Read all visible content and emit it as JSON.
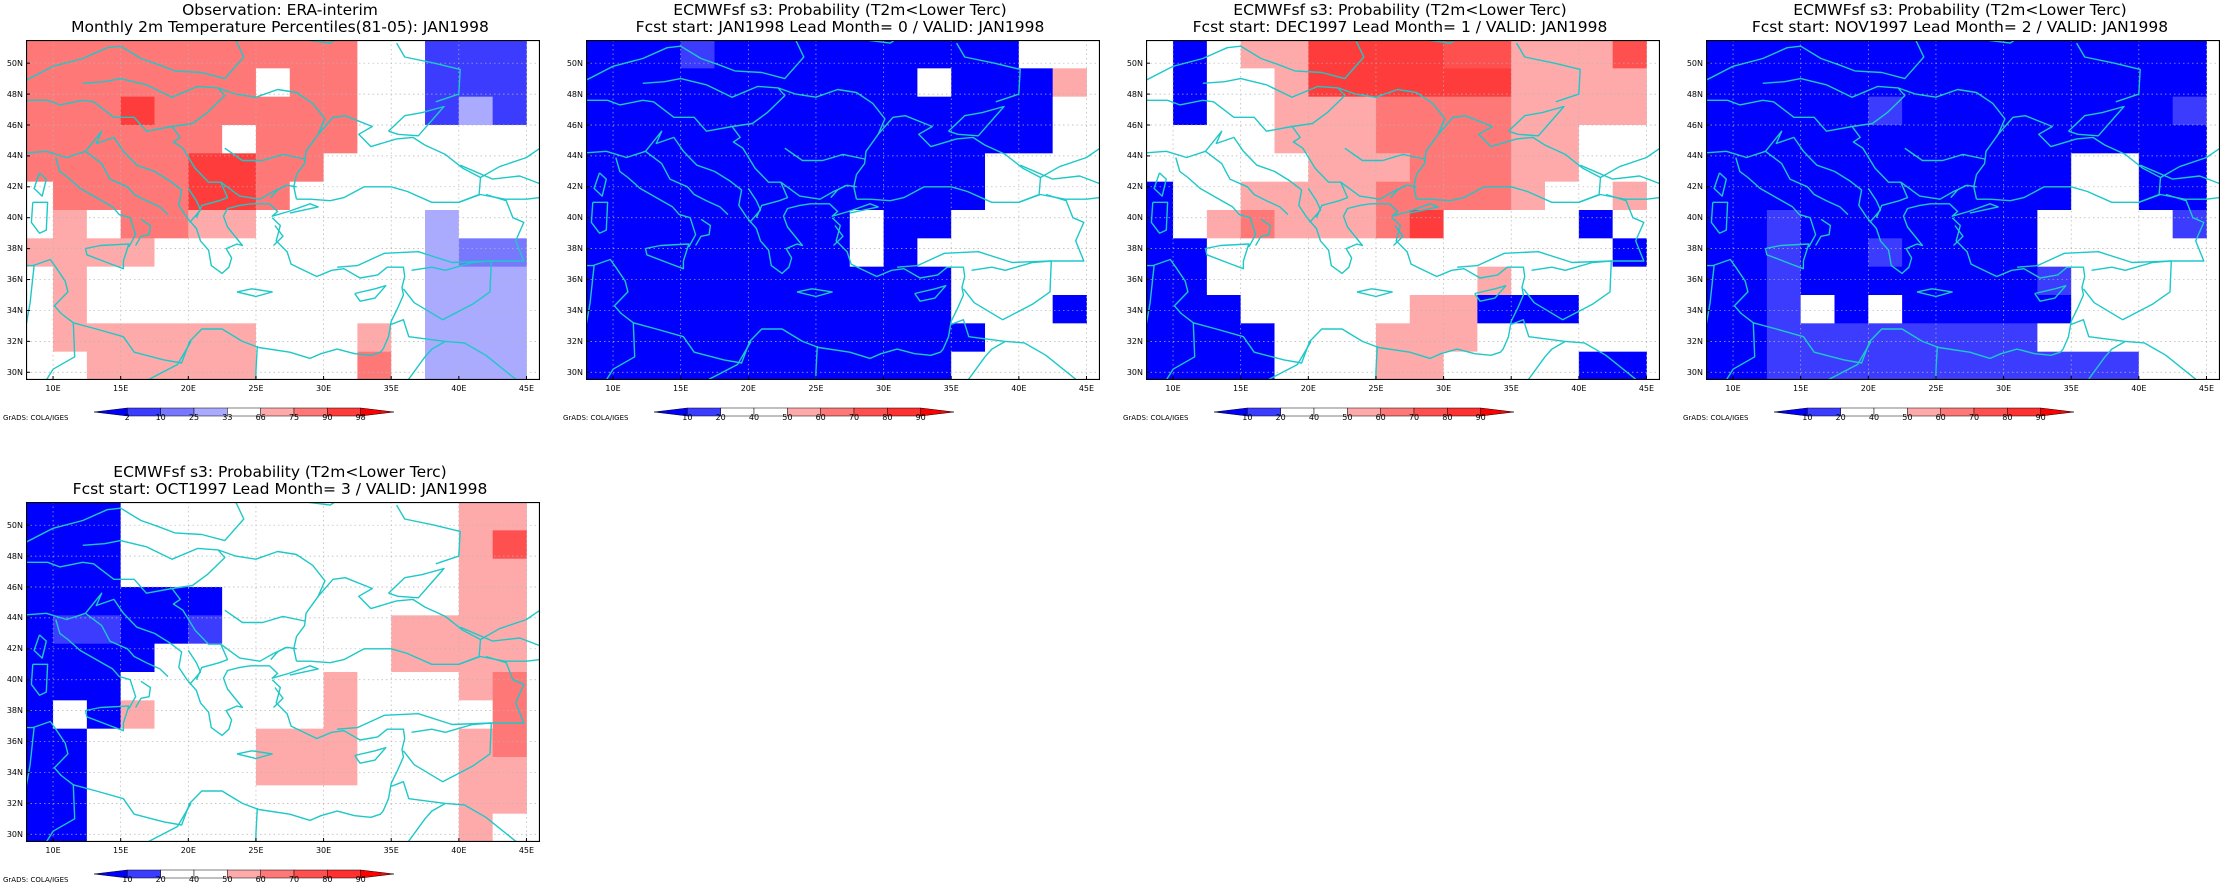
{
  "lon_ticks": [
    "10E",
    "15E",
    "20E",
    "25E",
    "30E",
    "35E",
    "40E",
    "45E"
  ],
  "lat_ticks": [
    "30N",
    "32N",
    "34N",
    "36N",
    "38N",
    "40N",
    "42N",
    "44N",
    "46N",
    "48N",
    "50N"
  ],
  "credit": "GrADS: COLA/IGES",
  "legends": {
    "percentile": {
      "labels": [
        "2",
        "10",
        "25",
        "33",
        "66",
        "75",
        "90",
        "98"
      ],
      "colors": [
        "#0000ff",
        "#3c3cff",
        "#7878ff",
        "#aaaaff",
        "#ffffff",
        "#ffaaaa",
        "#ff7878",
        "#ff3c3c",
        "#ff0000"
      ]
    },
    "probability": {
      "labels": [
        "10",
        "20",
        "40",
        "50",
        "60",
        "70",
        "80",
        "90"
      ],
      "colors": [
        "#0000ff",
        "#3c3cff",
        "#ffffff",
        "#ffffff",
        "#ffaaaa",
        "#ff7878",
        "#ff5050",
        "#ff3030",
        "#ff0000"
      ]
    }
  },
  "class_colors": {
    "B4": "#0000ff",
    "B3": "#3c3cff",
    "B2": "#7878ff",
    "B1": "#aaaaff",
    "W": "#ffffff",
    "R1": "#ffaaaa",
    "R2": "#ff7878",
    "R3": "#ff5050",
    "R4": "#ff3c3c",
    "R5": "#ff0000"
  },
  "panels": [
    {
      "title1": "Observation: ERA-interim",
      "title2": "Monthly 2m Temperature Percentiles(81-05): JAN1998",
      "legend": "percentile",
      "grid": [
        [
          "R2",
          "R2",
          "R2",
          "R2",
          "R2",
          "R2",
          "R2",
          "R2",
          "R2",
          "R2",
          "W",
          "W",
          "B3",
          "B3",
          "B3"
        ],
        [
          "R2",
          "R2",
          "R2",
          "R2",
          "R2",
          "R2",
          "R2",
          "W",
          "R2",
          "R2",
          "W",
          "W",
          "B3",
          "B3",
          "B3"
        ],
        [
          "R2",
          "R2",
          "R2",
          "R4",
          "R2",
          "R2",
          "R2",
          "R2",
          "R2",
          "R2",
          "W",
          "W",
          "B3",
          "B1",
          "B3"
        ],
        [
          "R2",
          "R2",
          "R2",
          "R2",
          "R2",
          "R2",
          "W",
          "R2",
          "R2",
          "R2",
          "W",
          "W",
          "W",
          "W",
          "W"
        ],
        [
          "R2",
          "R2",
          "R2",
          "R2",
          "R2",
          "R4",
          "R4",
          "R2",
          "R2",
          "W",
          "W",
          "W",
          "W",
          "W",
          "W"
        ],
        [
          "W",
          "R2",
          "R2",
          "R2",
          "R2",
          "R4",
          "R4",
          "R2",
          "W",
          "W",
          "W",
          "W",
          "W",
          "W",
          "W"
        ],
        [
          "W",
          "R1",
          "W",
          "R2",
          "R2",
          "R1",
          "R1",
          "W",
          "W",
          "W",
          "W",
          "W",
          "B1",
          "W",
          "W"
        ],
        [
          "R1",
          "R1",
          "R1",
          "R1",
          "W",
          "W",
          "W",
          "W",
          "W",
          "W",
          "W",
          "W",
          "B1",
          "B2",
          "B2"
        ],
        [
          "W",
          "R1",
          "W",
          "W",
          "W",
          "W",
          "W",
          "W",
          "W",
          "W",
          "W",
          "W",
          "B1",
          "B1",
          "B1"
        ],
        [
          "W",
          "R1",
          "W",
          "W",
          "W",
          "W",
          "W",
          "W",
          "W",
          "W",
          "W",
          "W",
          "B1",
          "B1",
          "B1"
        ],
        [
          "W",
          "R1",
          "R1",
          "R1",
          "R1",
          "R1",
          "R1",
          "W",
          "W",
          "W",
          "R1",
          "W",
          "B1",
          "B1",
          "B1"
        ],
        [
          "W",
          "W",
          "R1",
          "R1",
          "R1",
          "R1",
          "R1",
          "W",
          "W",
          "W",
          "R2",
          "W",
          "B1",
          "B1",
          "B1"
        ]
      ]
    },
    {
      "title1": "ECMWFsf s3: Probability (T2m<Lower Terc)",
      "title2": "Fcst start: JAN1998   Lead Month= 0 / VALID: JAN1998",
      "legend": "probability",
      "grid": [
        [
          "B4",
          "B4",
          "B4",
          "B3",
          "B4",
          "B4",
          "B4",
          "B4",
          "B4",
          "B4",
          "B4",
          "B4",
          "B4",
          "W",
          "W"
        ],
        [
          "B4",
          "B4",
          "B4",
          "B4",
          "B4",
          "B4",
          "B4",
          "B4",
          "B4",
          "B4",
          "W",
          "B4",
          "B4",
          "B4",
          "R1"
        ],
        [
          "B4",
          "B4",
          "B4",
          "B4",
          "B4",
          "B4",
          "B4",
          "B4",
          "B4",
          "B4",
          "B4",
          "B4",
          "B4",
          "B4",
          "W"
        ],
        [
          "B4",
          "B4",
          "B4",
          "B4",
          "B4",
          "B4",
          "B4",
          "B4",
          "B4",
          "B4",
          "B4",
          "B4",
          "B4",
          "B4",
          "W"
        ],
        [
          "B4",
          "B4",
          "B4",
          "B4",
          "B4",
          "B4",
          "B4",
          "B4",
          "B4",
          "B4",
          "B4",
          "B4",
          "W",
          "W",
          "W"
        ],
        [
          "B4",
          "B4",
          "B4",
          "B4",
          "B4",
          "B4",
          "B4",
          "B4",
          "B4",
          "B4",
          "B4",
          "B4",
          "W",
          "W",
          "W"
        ],
        [
          "B4",
          "B4",
          "B4",
          "B4",
          "B4",
          "B4",
          "B4",
          "B4",
          "W",
          "B4",
          "B4",
          "W",
          "W",
          "W",
          "W"
        ],
        [
          "B4",
          "B4",
          "B4",
          "B4",
          "B4",
          "B4",
          "B4",
          "B4",
          "W",
          "B4",
          "W",
          "W",
          "W",
          "W",
          "W"
        ],
        [
          "B4",
          "B4",
          "B4",
          "B4",
          "B4",
          "B4",
          "B4",
          "B4",
          "B4",
          "B4",
          "B4",
          "W",
          "W",
          "W",
          "W"
        ],
        [
          "B4",
          "B4",
          "B4",
          "B4",
          "B4",
          "B4",
          "B4",
          "B4",
          "B4",
          "B4",
          "B4",
          "W",
          "W",
          "W",
          "B4"
        ],
        [
          "B4",
          "B4",
          "B4",
          "B4",
          "B4",
          "B4",
          "B4",
          "B4",
          "B4",
          "B4",
          "B4",
          "B4",
          "W",
          "W",
          "W"
        ],
        [
          "B4",
          "B4",
          "B4",
          "B4",
          "B4",
          "B4",
          "B4",
          "B4",
          "B4",
          "B4",
          "B4",
          "W",
          "W",
          "W",
          "W"
        ]
      ]
    },
    {
      "title1": "ECMWFsf s3: Probability (T2m<Lower Terc)",
      "title2": "Fcst start: DEC1997   Lead Month= 1 / VALID: JAN1998",
      "legend": "probability",
      "grid": [
        [
          "W",
          "B4",
          "W",
          "R1",
          "R1",
          "R4",
          "R4",
          "R4",
          "R4",
          "R3",
          "R3",
          "R1",
          "R1",
          "R1",
          "R3"
        ],
        [
          "W",
          "B4",
          "W",
          "W",
          "R1",
          "R4",
          "R4",
          "R4",
          "R4",
          "R4",
          "R4",
          "R1",
          "R1",
          "R1",
          "R1"
        ],
        [
          "W",
          "B4",
          "W",
          "W",
          "R1",
          "R1",
          "R1",
          "R2",
          "R2",
          "R2",
          "R2",
          "R1",
          "R1",
          "R1",
          "R1"
        ],
        [
          "W",
          "W",
          "W",
          "W",
          "R1",
          "R1",
          "R1",
          "R2",
          "R2",
          "R2",
          "R2",
          "R1",
          "R1",
          "W",
          "W"
        ],
        [
          "W",
          "W",
          "W",
          "W",
          "W",
          "R1",
          "R1",
          "R1",
          "R2",
          "R2",
          "R2",
          "R1",
          "R1",
          "W",
          "W"
        ],
        [
          "B4",
          "W",
          "W",
          "R1",
          "R1",
          "R1",
          "R1",
          "R2",
          "R2",
          "R2",
          "R2",
          "R1",
          "W",
          "W",
          "R1"
        ],
        [
          "B4",
          "W",
          "R1",
          "R2",
          "R1",
          "R1",
          "R1",
          "R2",
          "R4",
          "W",
          "W",
          "W",
          "W",
          "B4",
          "W"
        ],
        [
          "B4",
          "B4",
          "W",
          "W",
          "W",
          "W",
          "W",
          "W",
          "W",
          "W",
          "W",
          "W",
          "W",
          "W",
          "B4"
        ],
        [
          "B4",
          "B4",
          "W",
          "W",
          "W",
          "W",
          "W",
          "W",
          "W",
          "W",
          "R1",
          "W",
          "W",
          "W",
          "W"
        ],
        [
          "B4",
          "B4",
          "B4",
          "W",
          "W",
          "W",
          "W",
          "W",
          "R1",
          "R1",
          "B4",
          "B4",
          "B4",
          "W",
          "W"
        ],
        [
          "B4",
          "B4",
          "B4",
          "B4",
          "W",
          "W",
          "W",
          "R1",
          "R1",
          "R1",
          "W",
          "W",
          "W",
          "W",
          "W"
        ],
        [
          "B4",
          "B4",
          "B4",
          "B4",
          "W",
          "W",
          "W",
          "R1",
          "R1",
          "W",
          "W",
          "W",
          "W",
          "B4",
          "B4"
        ]
      ]
    },
    {
      "title1": "ECMWFsf s3: Probability (T2m<Lower Terc)",
      "title2": "Fcst start: NOV1997   Lead Month= 2 / VALID: JAN1998",
      "legend": "probability",
      "grid": [
        [
          "B4",
          "B4",
          "B4",
          "B4",
          "B4",
          "B4",
          "B4",
          "B4",
          "B4",
          "B4",
          "B4",
          "B4",
          "B4",
          "B4",
          "B4"
        ],
        [
          "B4",
          "B4",
          "B4",
          "B4",
          "B4",
          "B4",
          "B4",
          "B4",
          "B4",
          "B4",
          "B4",
          "B4",
          "B4",
          "B4",
          "B4"
        ],
        [
          "B4",
          "B4",
          "B4",
          "B4",
          "B4",
          "B3",
          "B4",
          "B4",
          "B4",
          "B4",
          "B4",
          "B4",
          "B4",
          "B4",
          "B3"
        ],
        [
          "B4",
          "B4",
          "B4",
          "B4",
          "B4",
          "B4",
          "B4",
          "B4",
          "B4",
          "B4",
          "B4",
          "B4",
          "B4",
          "B4",
          "B4"
        ],
        [
          "B4",
          "B4",
          "B4",
          "B4",
          "B4",
          "B4",
          "B4",
          "B4",
          "B4",
          "B4",
          "B4",
          "W",
          "W",
          "B4",
          "B4"
        ],
        [
          "B4",
          "B4",
          "B4",
          "B4",
          "B4",
          "B4",
          "B4",
          "B4",
          "B4",
          "B4",
          "B4",
          "W",
          "W",
          "B4",
          "B4"
        ],
        [
          "B4",
          "B4",
          "B3",
          "B4",
          "B4",
          "B4",
          "B4",
          "B4",
          "B4",
          "B4",
          "W",
          "W",
          "W",
          "W",
          "B3"
        ],
        [
          "B4",
          "B4",
          "B3",
          "B4",
          "B4",
          "B3",
          "B4",
          "B4",
          "B4",
          "B4",
          "W",
          "W",
          "W",
          "W",
          "W"
        ],
        [
          "B4",
          "B4",
          "B3",
          "B4",
          "B4",
          "B4",
          "B4",
          "B4",
          "B4",
          "B4",
          "B3",
          "W",
          "W",
          "W",
          "W"
        ],
        [
          "B4",
          "B4",
          "B3",
          "W",
          "B4",
          "W",
          "B4",
          "B4",
          "B4",
          "B4",
          "B4",
          "W",
          "W",
          "W",
          "W"
        ],
        [
          "B4",
          "B4",
          "B3",
          "B3",
          "B3",
          "B3",
          "B3",
          "B3",
          "B3",
          "B3",
          "W",
          "W",
          "W",
          "W",
          "W"
        ],
        [
          "B4",
          "B4",
          "B3",
          "B3",
          "B3",
          "B3",
          "B3",
          "B3",
          "B3",
          "B3",
          "B3",
          "B3",
          "B3",
          "W",
          "W"
        ]
      ]
    },
    {
      "title1": "ECMWFsf s3: Probability (T2m<Lower Terc)",
      "title2": "Fcst start: OCT1997   Lead Month= 3 / VALID: JAN1998",
      "legend": "probability",
      "grid": [
        [
          "B4",
          "B4",
          "B4",
          "W",
          "W",
          "W",
          "W",
          "W",
          "W",
          "W",
          "W",
          "W",
          "W",
          "R1",
          "R1"
        ],
        [
          "B4",
          "B4",
          "B4",
          "W",
          "W",
          "W",
          "W",
          "W",
          "W",
          "W",
          "W",
          "W",
          "W",
          "R1",
          "R3"
        ],
        [
          "B4",
          "B4",
          "B4",
          "W",
          "W",
          "W",
          "W",
          "W",
          "W",
          "W",
          "W",
          "W",
          "W",
          "R1",
          "R1"
        ],
        [
          "B4",
          "B4",
          "B4",
          "B4",
          "B4",
          "B4",
          "W",
          "W",
          "W",
          "W",
          "W",
          "W",
          "W",
          "R1",
          "R1"
        ],
        [
          "B4",
          "B3",
          "B3",
          "B4",
          "B4",
          "B3",
          "W",
          "W",
          "W",
          "W",
          "W",
          "R1",
          "R1",
          "R1",
          "R1"
        ],
        [
          "B4",
          "B4",
          "B4",
          "B4",
          "W",
          "W",
          "W",
          "W",
          "W",
          "W",
          "W",
          "R1",
          "R1",
          "R1",
          "R1"
        ],
        [
          "B4",
          "B4",
          "B4",
          "W",
          "W",
          "W",
          "W",
          "W",
          "W",
          "R1",
          "W",
          "W",
          "W",
          "R1",
          "R2"
        ],
        [
          "B4",
          "W",
          "B4",
          "R1",
          "W",
          "W",
          "W",
          "W",
          "W",
          "R1",
          "W",
          "W",
          "W",
          "W",
          "R2"
        ],
        [
          "B4",
          "B4",
          "W",
          "W",
          "W",
          "W",
          "W",
          "R1",
          "R1",
          "R1",
          "W",
          "W",
          "W",
          "R1",
          "R2"
        ],
        [
          "B4",
          "B4",
          "W",
          "W",
          "W",
          "W",
          "W",
          "R1",
          "R1",
          "R1",
          "W",
          "W",
          "W",
          "R1",
          "R1"
        ],
        [
          "B4",
          "B4",
          "W",
          "W",
          "W",
          "W",
          "W",
          "W",
          "W",
          "W",
          "W",
          "W",
          "W",
          "R1",
          "R1"
        ],
        [
          "B4",
          "B4",
          "W",
          "W",
          "W",
          "W",
          "W",
          "W",
          "W",
          "W",
          "W",
          "W",
          "W",
          "R1",
          "W"
        ]
      ]
    }
  ]
}
